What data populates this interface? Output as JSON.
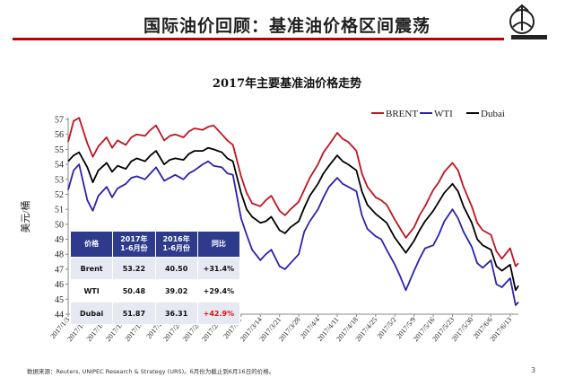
{
  "slide": {
    "title": "国际油价回顾：基准油价格区间震荡",
    "footnote": "数据来源：Reuters, UNIPEC Research & Strategy (URS)。6月份为截止到6月16日的价格。",
    "page_number": "3"
  },
  "colors": {
    "title_rule": "#c00000",
    "brent": "#c0141e",
    "wti": "#2a22b0",
    "dubai": "#000000",
    "table_header": "#2e3a8c",
    "negative": "#e01010"
  },
  "table": {
    "headers": [
      "价格",
      "2017年\n1-6月份",
      "2016年\n1-6月份",
      "同比"
    ],
    "rows": [
      {
        "name": "Brent",
        "v2017": "53.22",
        "v2016": "40.50",
        "change": "+31.4%"
      },
      {
        "name": "WTI",
        "v2017": "50.48",
        "v2016": "39.02",
        "change": "+29.4%"
      },
      {
        "name": "Dubai",
        "v2017": "51.87",
        "v2016": "36.31",
        "change": "+42.9%"
      }
    ]
  },
  "chart_data": {
    "type": "line",
    "title": "2017年主要基准油价格走势",
    "ylabel": "美元/桶",
    "xlabel": "",
    "ylim": [
      44,
      57
    ],
    "y_ticks": [
      44,
      45,
      46,
      47,
      48,
      49,
      50,
      51,
      52,
      53,
      54,
      55,
      56,
      57
    ],
    "x_tick_labels": [
      "2017/1/3",
      "2017/1/10",
      "2017/1/17",
      "2017/1/24",
      "2017/1/31",
      "2017/2/7",
      "2017/2/14",
      "2017/2/21",
      "2017/2/28",
      "2017/3/7",
      "2017/3/14",
      "2017/3/21",
      "2017/3/28",
      "2017/4/4",
      "2017/4/11",
      "2017/4/18",
      "2017/4/25",
      "2017/5/2",
      "2017/5/9",
      "2017/5/16",
      "2017/5/23",
      "2017/5/30",
      "2017/6/6",
      "2017/6/13"
    ],
    "legend_position": "top-right",
    "grid": false,
    "series": [
      {
        "name": "BRENT",
        "color": "#c0141e",
        "x": [
          "2017/1/3",
          "2017/1/5",
          "2017/1/7",
          "2017/1/10",
          "2017/1/12",
          "2017/1/14",
          "2017/1/17",
          "2017/1/19",
          "2017/1/21",
          "2017/1/24",
          "2017/1/26",
          "2017/1/28",
          "2017/1/31",
          "2017/2/2",
          "2017/2/4",
          "2017/2/7",
          "2017/2/9",
          "2017/2/11",
          "2017/2/14",
          "2017/2/16",
          "2017/2/18",
          "2017/2/21",
          "2017/2/23",
          "2017/2/25",
          "2017/2/28",
          "2017/3/2",
          "2017/3/4",
          "2017/3/7",
          "2017/3/9",
          "2017/3/11",
          "2017/3/14",
          "2017/3/16",
          "2017/3/18",
          "2017/3/21",
          "2017/3/23",
          "2017/3/25",
          "2017/3/28",
          "2017/3/30",
          "2017/4/1",
          "2017/4/4",
          "2017/4/6",
          "2017/4/8",
          "2017/4/11",
          "2017/4/13",
          "2017/4/15",
          "2017/4/18",
          "2017/4/20",
          "2017/4/22",
          "2017/4/25",
          "2017/4/27",
          "2017/4/29",
          "2017/5/2",
          "2017/5/4",
          "2017/5/6",
          "2017/5/9",
          "2017/5/11",
          "2017/5/13",
          "2017/5/16",
          "2017/5/18",
          "2017/5/20",
          "2017/5/23",
          "2017/5/25",
          "2017/5/27",
          "2017/5/30",
          "2017/6/1",
          "2017/6/3",
          "2017/6/6",
          "2017/6/8",
          "2017/6/10",
          "2017/6/13",
          "2017/6/15",
          "2017/6/16"
        ],
        "values": [
          55.5,
          56.9,
          57.1,
          55.4,
          54.5,
          55.2,
          55.8,
          55.1,
          55.6,
          55.3,
          55.8,
          56.0,
          55.9,
          56.3,
          56.6,
          55.6,
          55.9,
          56.0,
          55.8,
          56.2,
          56.4,
          56.3,
          56.5,
          56.6,
          56.0,
          55.6,
          55.3,
          53.2,
          52.1,
          51.4,
          51.2,
          51.6,
          51.9,
          50.9,
          50.6,
          51.0,
          51.5,
          52.3,
          53.1,
          54.0,
          54.8,
          55.3,
          56.1,
          55.7,
          55.5,
          54.9,
          53.4,
          52.5,
          51.8,
          51.6,
          51.3,
          50.3,
          49.7,
          49.1,
          49.8,
          50.6,
          51.2,
          52.3,
          52.8,
          53.5,
          54.1,
          53.6,
          52.5,
          51.2,
          50.1,
          49.6,
          49.3,
          48.2,
          47.7,
          48.4,
          47.2,
          47.4
        ]
      },
      {
        "name": "WTI",
        "color": "#2a22b0",
        "x": [
          "2017/1/3",
          "2017/1/5",
          "2017/1/7",
          "2017/1/10",
          "2017/1/12",
          "2017/1/14",
          "2017/1/17",
          "2017/1/19",
          "2017/1/21",
          "2017/1/24",
          "2017/1/26",
          "2017/1/28",
          "2017/1/31",
          "2017/2/2",
          "2017/2/4",
          "2017/2/7",
          "2017/2/9",
          "2017/2/11",
          "2017/2/14",
          "2017/2/16",
          "2017/2/18",
          "2017/2/21",
          "2017/2/23",
          "2017/2/25",
          "2017/2/28",
          "2017/3/2",
          "2017/3/4",
          "2017/3/7",
          "2017/3/9",
          "2017/3/11",
          "2017/3/14",
          "2017/3/16",
          "2017/3/18",
          "2017/3/21",
          "2017/3/23",
          "2017/3/25",
          "2017/3/28",
          "2017/3/30",
          "2017/4/1",
          "2017/4/4",
          "2017/4/6",
          "2017/4/8",
          "2017/4/11",
          "2017/4/13",
          "2017/4/15",
          "2017/4/18",
          "2017/4/20",
          "2017/4/22",
          "2017/4/25",
          "2017/4/27",
          "2017/4/29",
          "2017/5/2",
          "2017/5/4",
          "2017/5/6",
          "2017/5/9",
          "2017/5/11",
          "2017/5/13",
          "2017/5/16",
          "2017/5/18",
          "2017/5/20",
          "2017/5/23",
          "2017/5/25",
          "2017/5/27",
          "2017/5/30",
          "2017/6/1",
          "2017/6/3",
          "2017/6/6",
          "2017/6/8",
          "2017/6/10",
          "2017/6/13",
          "2017/6/15",
          "2017/6/16"
        ],
        "values": [
          52.3,
          53.6,
          54.0,
          51.6,
          50.9,
          51.9,
          52.5,
          51.8,
          52.4,
          52.7,
          53.1,
          53.2,
          53.0,
          53.4,
          53.8,
          52.9,
          53.1,
          53.3,
          53.0,
          53.4,
          53.6,
          54.0,
          54.2,
          53.9,
          53.8,
          53.4,
          53.3,
          50.4,
          49.3,
          48.3,
          47.6,
          48.0,
          48.3,
          47.2,
          47.0,
          47.4,
          48.0,
          49.5,
          50.2,
          51.0,
          51.8,
          52.5,
          53.1,
          52.7,
          52.5,
          52.2,
          50.6,
          49.7,
          49.2,
          49.0,
          48.3,
          47.3,
          46.5,
          45.6,
          46.9,
          47.7,
          48.4,
          48.6,
          49.3,
          50.2,
          51.0,
          50.4,
          49.5,
          48.5,
          47.4,
          47.1,
          47.6,
          46.0,
          45.8,
          46.4,
          44.6,
          44.8
        ]
      },
      {
        "name": "Dubai",
        "color": "#000000",
        "x": [
          "2017/1/3",
          "2017/1/5",
          "2017/1/7",
          "2017/1/10",
          "2017/1/12",
          "2017/1/14",
          "2017/1/17",
          "2017/1/19",
          "2017/1/21",
          "2017/1/24",
          "2017/1/26",
          "2017/1/28",
          "2017/1/31",
          "2017/2/2",
          "2017/2/4",
          "2017/2/7",
          "2017/2/9",
          "2017/2/11",
          "2017/2/14",
          "2017/2/16",
          "2017/2/18",
          "2017/2/21",
          "2017/2/23",
          "2017/2/25",
          "2017/2/28",
          "2017/3/2",
          "2017/3/4",
          "2017/3/7",
          "2017/3/9",
          "2017/3/11",
          "2017/3/14",
          "2017/3/16",
          "2017/3/18",
          "2017/3/21",
          "2017/3/23",
          "2017/3/25",
          "2017/3/28",
          "2017/3/30",
          "2017/4/1",
          "2017/4/4",
          "2017/4/6",
          "2017/4/8",
          "2017/4/11",
          "2017/4/13",
          "2017/4/15",
          "2017/4/18",
          "2017/4/20",
          "2017/4/22",
          "2017/4/25",
          "2017/4/27",
          "2017/4/29",
          "2017/5/2",
          "2017/5/4",
          "2017/5/6",
          "2017/5/9",
          "2017/5/11",
          "2017/5/13",
          "2017/5/16",
          "2017/5/18",
          "2017/5/20",
          "2017/5/23",
          "2017/5/25",
          "2017/5/27",
          "2017/5/30",
          "2017/6/1",
          "2017/6/3",
          "2017/6/6",
          "2017/6/8",
          "2017/6/10",
          "2017/6/13",
          "2017/6/15",
          "2017/6/16"
        ],
        "values": [
          54.2,
          54.6,
          54.8,
          53.8,
          52.8,
          53.6,
          54.1,
          53.5,
          53.9,
          53.7,
          54.2,
          54.4,
          54.2,
          54.6,
          54.9,
          54.0,
          54.3,
          54.4,
          54.3,
          54.7,
          54.9,
          54.9,
          55.1,
          55.0,
          54.8,
          54.4,
          54.2,
          52.1,
          51.0,
          50.5,
          50.1,
          50.2,
          50.5,
          49.6,
          49.4,
          49.8,
          50.2,
          51.1,
          51.9,
          52.7,
          53.4,
          53.9,
          54.6,
          54.2,
          54.0,
          53.6,
          52.2,
          51.3,
          50.7,
          50.4,
          50.1,
          49.1,
          48.6,
          48.1,
          48.9,
          49.6,
          50.2,
          50.9,
          51.5,
          52.1,
          52.7,
          52.2,
          51.2,
          50.1,
          49.0,
          48.6,
          48.3,
          47.2,
          46.9,
          47.3,
          45.6,
          45.9
        ]
      }
    ]
  }
}
